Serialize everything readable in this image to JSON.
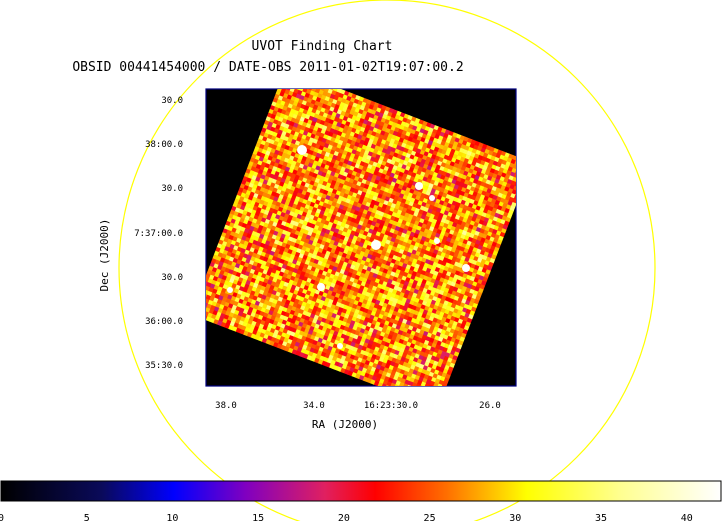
{
  "chart_data": {
    "type": "heatmap",
    "title": "UVOT Finding Chart",
    "subtitle": "OBSID 00441454000 / DATE-OBS 2011-01-02T19:07:00.2",
    "xlabel": "RA (J2000)",
    "ylabel": "Dec (J2000)",
    "x_ticks": [
      "38.0",
      "34.0",
      "16:23:30.0",
      "26.0"
    ],
    "y_ticks": [
      "30.0",
      "38:00.0",
      "30.0",
      "7:37:00.0",
      "30.0",
      "36:00.0",
      "35:30.0"
    ],
    "colorbar": {
      "ticks": [
        "0",
        "5",
        "10",
        "15",
        "20",
        "25",
        "30",
        "35",
        "40"
      ],
      "range": [
        0,
        42
      ],
      "colormap": [
        "#000000",
        "#0000ff",
        "#ff0000",
        "#ffff00",
        "#ffffff"
      ]
    },
    "background_level": 27,
    "sources_count_visible": 9,
    "circle_color": "#ffff00",
    "frame_color": "#000080"
  }
}
